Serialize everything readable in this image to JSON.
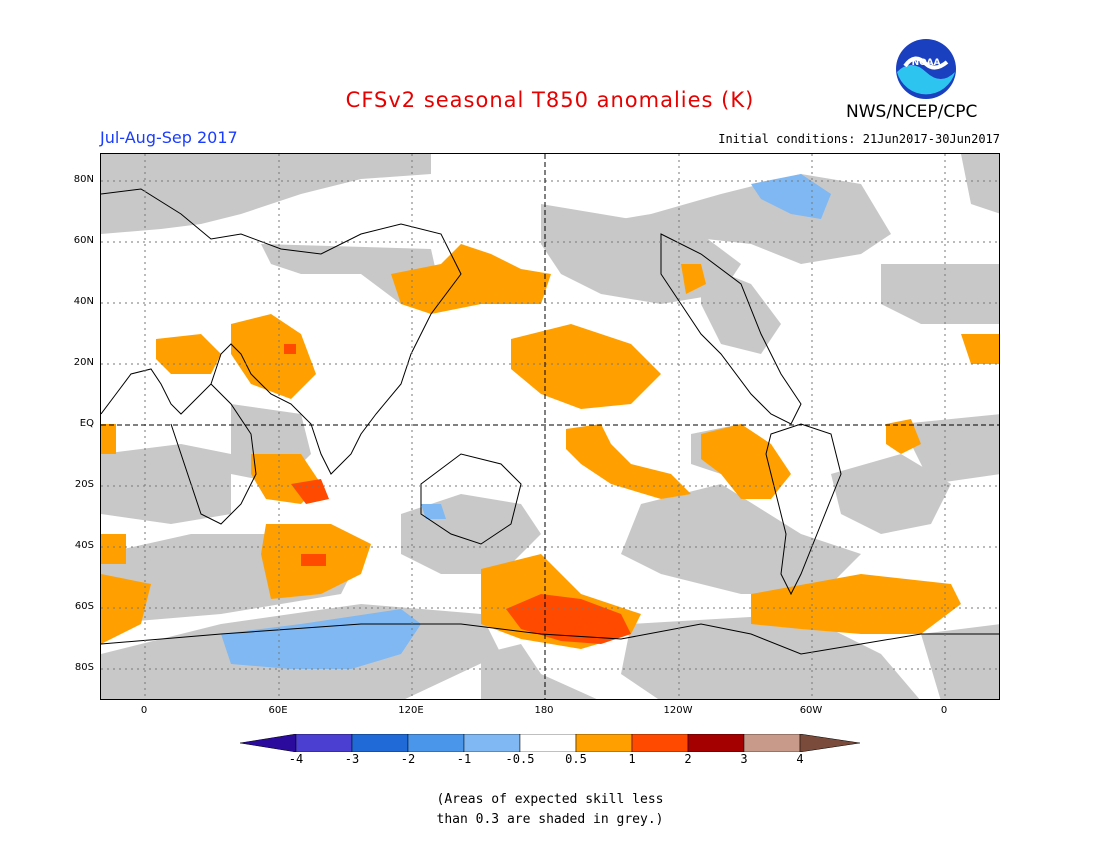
{
  "title": "CFSv2 seasonal T850 anomalies (K)",
  "organization": "NWS/NCEP/CPC",
  "logo_text": "NOAA",
  "period": "Jul-Aug-Sep 2017",
  "initial_conditions": "Initial conditions: 21Jun2017-30Jun2017",
  "lat_labels": [
    "80N",
    "60N",
    "40N",
    "20N",
    "EQ",
    "20S",
    "40S",
    "60S",
    "80S"
  ],
  "lon_labels": [
    "0",
    "60E",
    "120E",
    "180",
    "120W",
    "60W",
    "0"
  ],
  "colorbar": {
    "labels": [
      "-4",
      "-3",
      "-2",
      "-1",
      "-0.5",
      "0.5",
      "1",
      "2",
      "3",
      "4"
    ],
    "colors": [
      "#2b0a9e",
      "#4a3fd1",
      "#1f6ad6",
      "#4a96ea",
      "#7fb8f2",
      "#ffffff",
      "#ffa000",
      "#ff4a00",
      "#a50000",
      "#c89a8a",
      "#7a4a3a"
    ]
  },
  "note_line1": "(Areas of expected skill less",
  "note_line2": "than 0.3 are shaded in grey.)",
  "colors": {
    "title": "#e60000",
    "period": "#1a3cff",
    "skill_grey": "#c8c8c8",
    "warm": "#ffa000",
    "warmer": "#ff4a00",
    "cool": "#7fb8f2"
  }
}
